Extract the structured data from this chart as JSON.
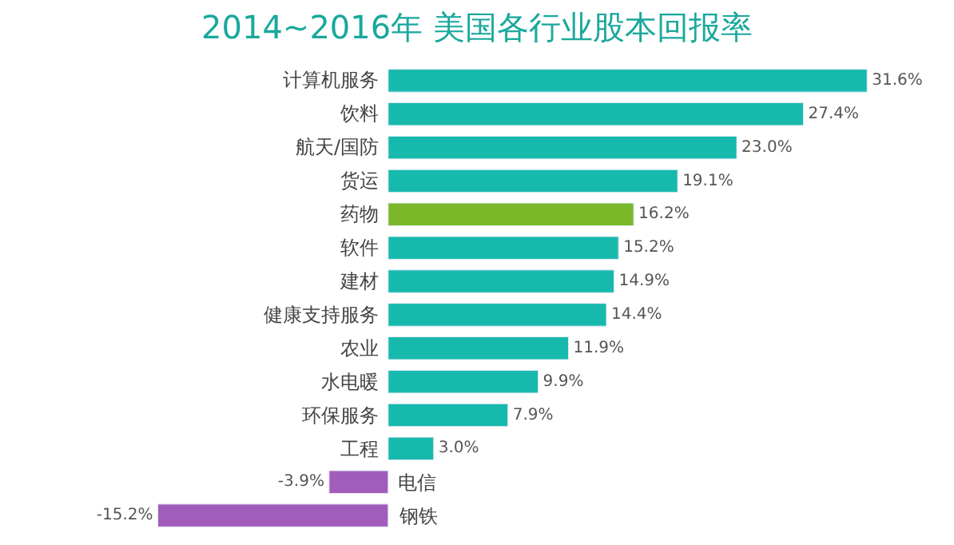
{
  "chart_data": {
    "type": "bar",
    "orientation": "horizontal",
    "title": "2014~2016年 美国各行业股本回报率",
    "categories": [
      "计算机服务",
      "饮料",
      "航天/国防",
      "货运",
      "药物",
      "软件",
      "建材",
      "健康支持服务",
      "农业",
      "水电暖",
      "环保服务",
      "工程",
      "电信",
      "钢铁"
    ],
    "values": [
      31.6,
      27.4,
      23.0,
      19.1,
      16.2,
      15.2,
      14.9,
      14.4,
      11.9,
      9.9,
      7.9,
      3.0,
      -3.9,
      -15.2
    ],
    "value_labels": [
      "31.6%",
      "27.4%",
      "23.0%",
      "19.1%",
      "16.2%",
      "15.2%",
      "14.9%",
      "14.4%",
      "11.9%",
      "9.9%",
      "7.9%",
      "3.0%",
      "-3.9%",
      "-15.2%"
    ],
    "colors": [
      "#17b9ad",
      "#17b9ad",
      "#17b9ad",
      "#17b9ad",
      "#7ab829",
      "#17b9ad",
      "#17b9ad",
      "#17b9ad",
      "#17b9ad",
      "#17b9ad",
      "#17b9ad",
      "#17b9ad",
      "#a25cbb",
      "#a25cbb"
    ],
    "legend": false
  }
}
